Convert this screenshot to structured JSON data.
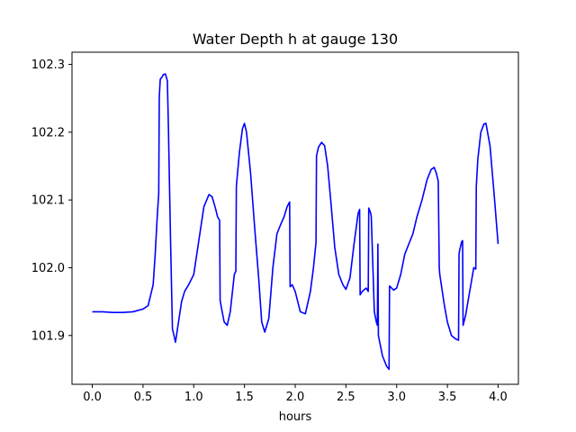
{
  "chart_data": {
    "type": "line",
    "title": "Water Depth h at gauge 130",
    "xlabel": "hours",
    "ylabel": "",
    "xlim": [
      -0.2,
      4.2
    ],
    "ylim": [
      101.828,
      102.318
    ],
    "xticks": [
      0.0,
      0.5,
      1.0,
      1.5,
      2.0,
      2.5,
      3.0,
      3.5,
      4.0
    ],
    "xtick_labels": [
      "0.0",
      "0.5",
      "1.0",
      "1.5",
      "2.0",
      "2.5",
      "3.0",
      "3.5",
      "4.0"
    ],
    "yticks": [
      101.9,
      102.0,
      102.1,
      102.2,
      102.3
    ],
    "ytick_labels": [
      "101.9",
      "102.0",
      "102.1",
      "102.2",
      "102.3"
    ],
    "grid": false,
    "series": [
      {
        "color": "#0000ff",
        "x": [
          0.0,
          0.1,
          0.2,
          0.3,
          0.4,
          0.5,
          0.55,
          0.6,
          0.62,
          0.64,
          0.655,
          0.66,
          0.665,
          0.67,
          0.69,
          0.7,
          0.72,
          0.74,
          0.75,
          0.77,
          0.79,
          0.82,
          0.85,
          0.88,
          0.91,
          0.95,
          1.0,
          1.05,
          1.1,
          1.15,
          1.18,
          1.21,
          1.235,
          1.255,
          1.26,
          1.28,
          1.3,
          1.33,
          1.36,
          1.4,
          1.415,
          1.42,
          1.45,
          1.48,
          1.5,
          1.52,
          1.56,
          1.6,
          1.64,
          1.67,
          1.7,
          1.74,
          1.78,
          1.82,
          1.86,
          1.89,
          1.92,
          1.945,
          1.95,
          1.97,
          2.0,
          2.05,
          2.1,
          2.15,
          2.18,
          2.205,
          2.21,
          2.23,
          2.26,
          2.29,
          2.32,
          2.35,
          2.39,
          2.43,
          2.47,
          2.5,
          2.54,
          2.58,
          2.62,
          2.635,
          2.64,
          2.66,
          2.7,
          2.72,
          2.725,
          2.745,
          2.75,
          2.78,
          2.8,
          2.81,
          2.815,
          2.82,
          2.86,
          2.9,
          2.925,
          2.93,
          2.97,
          3.0,
          3.04,
          3.08,
          3.12,
          3.16,
          3.2,
          3.25,
          3.3,
          3.34,
          3.37,
          3.39,
          3.41,
          3.42,
          3.425,
          3.44,
          3.47,
          3.5,
          3.54,
          3.58,
          3.61,
          3.615,
          3.62,
          3.64,
          3.65,
          3.655,
          3.68,
          3.72,
          3.76,
          3.78,
          3.785,
          3.8,
          3.83,
          3.86,
          3.88,
          3.92,
          3.96,
          4.0
        ],
        "y": [
          101.935,
          101.935,
          101.934,
          101.934,
          101.935,
          101.939,
          101.944,
          101.975,
          102.02,
          102.075,
          102.11,
          102.25,
          102.265,
          102.278,
          102.282,
          102.285,
          102.286,
          102.276,
          102.21,
          102.05,
          101.91,
          101.89,
          101.92,
          101.95,
          101.965,
          101.975,
          101.99,
          102.04,
          102.09,
          102.108,
          102.105,
          102.09,
          102.075,
          102.07,
          101.952,
          101.935,
          101.92,
          101.915,
          101.935,
          101.99,
          101.995,
          102.12,
          102.17,
          102.205,
          102.213,
          102.2,
          102.14,
          102.06,
          101.985,
          101.92,
          101.905,
          101.925,
          102.0,
          102.05,
          102.065,
          102.075,
          102.09,
          102.097,
          101.972,
          101.975,
          101.965,
          101.935,
          101.932,
          101.965,
          102.0,
          102.037,
          102.165,
          102.178,
          102.185,
          102.18,
          102.15,
          102.1,
          102.03,
          101.99,
          101.975,
          101.968,
          101.985,
          102.035,
          102.08,
          102.086,
          101.96,
          101.965,
          101.97,
          101.965,
          102.088,
          102.08,
          102.075,
          101.935,
          101.92,
          101.915,
          102.035,
          101.9,
          101.87,
          101.855,
          101.85,
          101.973,
          101.967,
          101.97,
          101.99,
          102.02,
          102.035,
          102.05,
          102.075,
          102.1,
          102.13,
          102.145,
          102.148,
          102.14,
          102.128,
          102.0,
          101.99,
          101.975,
          101.945,
          101.92,
          101.9,
          101.895,
          101.893,
          102.02,
          102.025,
          102.038,
          102.04,
          101.915,
          101.93,
          101.965,
          102.0,
          101.998,
          102.12,
          102.16,
          102.2,
          102.212,
          102.213,
          102.18,
          102.11,
          102.035
        ]
      }
    ]
  }
}
